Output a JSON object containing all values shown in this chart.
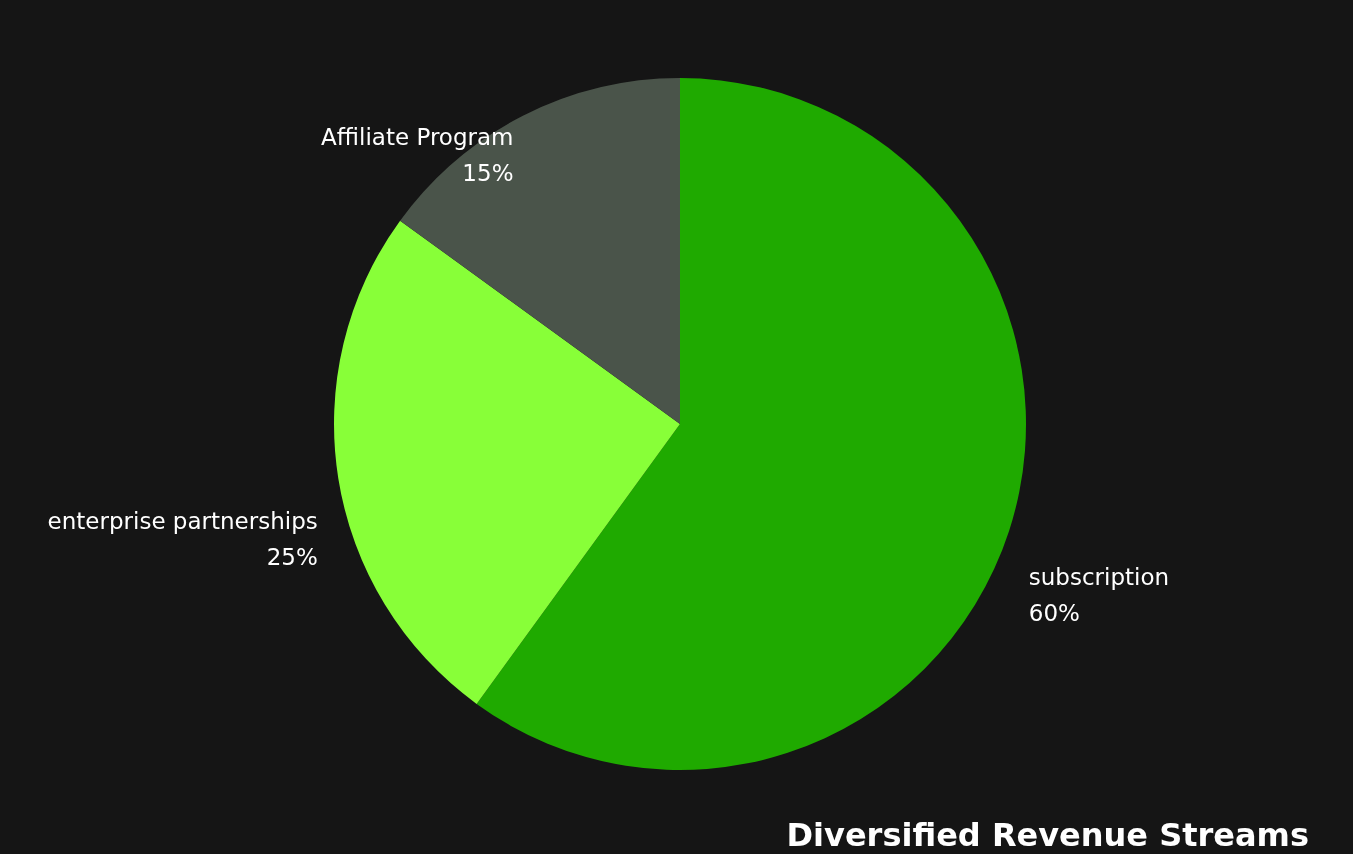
{
  "chart_data": {
    "type": "pie",
    "title": "Diversified Revenue Streams",
    "categories": [
      "subscription",
      "enterprise partnerships",
      "Affiliate Program"
    ],
    "values": [
      60,
      25,
      15
    ],
    "value_labels": [
      "60%",
      "25%",
      "15%"
    ],
    "colors": [
      "#1faa00",
      "#88ff38",
      "#4a544a"
    ]
  }
}
